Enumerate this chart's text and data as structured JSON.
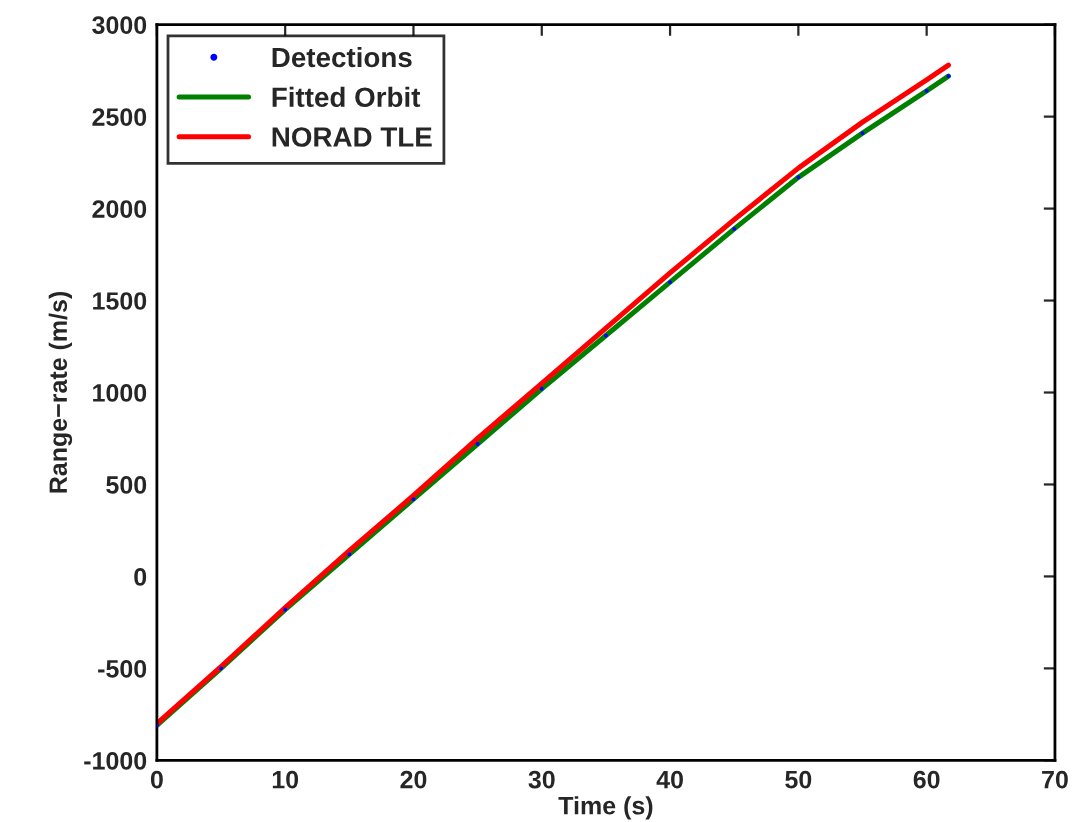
{
  "chart_data": {
    "type": "line",
    "xlabel": "Time (s)",
    "ylabel": "Range−rate (m/s)",
    "xlim": [
      0,
      70
    ],
    "xticks": [
      0,
      10,
      20,
      30,
      40,
      50,
      60,
      70
    ],
    "ylim": [
      -1000,
      3000
    ],
    "yticks": [
      -1000,
      -500,
      0,
      500,
      1000,
      1500,
      2000,
      2500,
      3000
    ],
    "grid": false,
    "legend": "top left",
    "series": [
      {
        "name": "Detections",
        "type": "scatter",
        "color": "#0000ff",
        "x": [
          0,
          5,
          10,
          15,
          20,
          25,
          30,
          35,
          40,
          45,
          50,
          55,
          60,
          61.7
        ],
        "values": [
          -810,
          -500,
          -180,
          120,
          420,
          720,
          1020,
          1310,
          1600,
          1890,
          2170,
          2410,
          2640,
          2720
        ]
      },
      {
        "name": "Fitted Orbit",
        "color": "#008000",
        "x": [
          0,
          5,
          10,
          15,
          20,
          25,
          30,
          35,
          40,
          45,
          50,
          55,
          60,
          61.7
        ],
        "values": [
          -810,
          -500,
          -180,
          120,
          420,
          720,
          1020,
          1310,
          1600,
          1890,
          2170,
          2410,
          2640,
          2720
        ]
      },
      {
        "name": "NORAD TLE",
        "color": "#ff0000",
        "x": [
          0,
          5,
          10,
          15,
          20,
          25,
          30,
          35,
          40,
          45,
          50,
          55,
          60,
          61.7
        ],
        "values": [
          -800,
          -490,
          -170,
          140,
          440,
          750,
          1050,
          1350,
          1650,
          1940,
          2220,
          2470,
          2700,
          2780
        ]
      }
    ]
  }
}
